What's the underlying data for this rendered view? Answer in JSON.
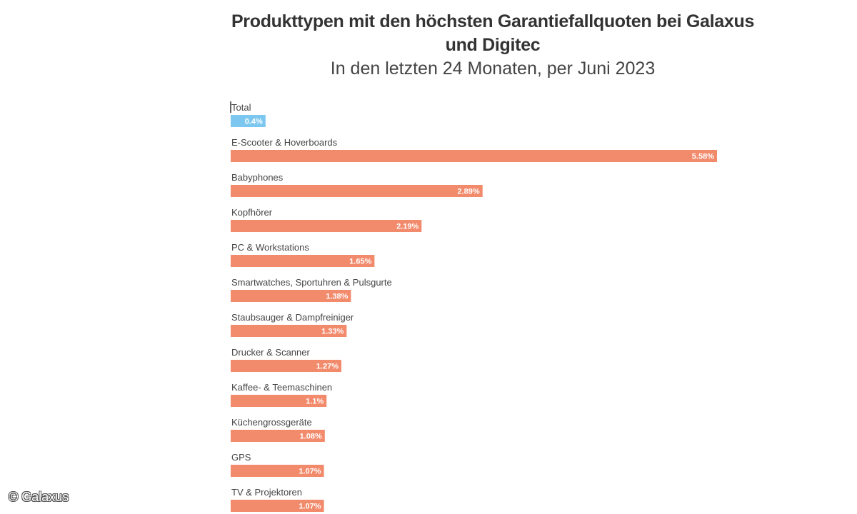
{
  "chart_data": {
    "type": "bar",
    "orientation": "horizontal",
    "title": "Produkttypen mit den höchsten Garantiefallquoten bei Galaxus und Digitec",
    "subtitle": "In den letzten 24 Monaten, per Juni 2023",
    "categories": [
      "Total",
      "E-Scooter & Hoverboards",
      "Babyphones",
      "Kopfhörer",
      "PC & Workstations",
      "Smartwatches, Sportuhren & Pulsgurte",
      "Staubsauger & Dampfreiniger",
      "Drucker & Scanner",
      "Kaffee- & Teemaschinen",
      "Küchengrossgeräte",
      "GPS",
      "TV & Projektoren"
    ],
    "values": [
      0.4,
      5.58,
      2.89,
      2.19,
      1.65,
      1.38,
      1.33,
      1.27,
      1.1,
      1.08,
      1.07,
      1.07
    ],
    "value_labels": [
      "0.4%",
      "5.58%",
      "2.89%",
      "2.19%",
      "1.65%",
      "1.38%",
      "1.33%",
      "1.27%",
      "1.1%",
      "1.08%",
      "1.07%",
      "1.07%"
    ],
    "bar_colors": [
      "#7cc7f0",
      "#f28a6c",
      "#f28a6c",
      "#f28a6c",
      "#f28a6c",
      "#f28a6c",
      "#f28a6c",
      "#f28a6c",
      "#f28a6c",
      "#f28a6c",
      "#f28a6c",
      "#f28a6c"
    ],
    "xlim": [
      0,
      5.58
    ],
    "grid": false,
    "legend": "none"
  },
  "copyright": "© Galaxus"
}
